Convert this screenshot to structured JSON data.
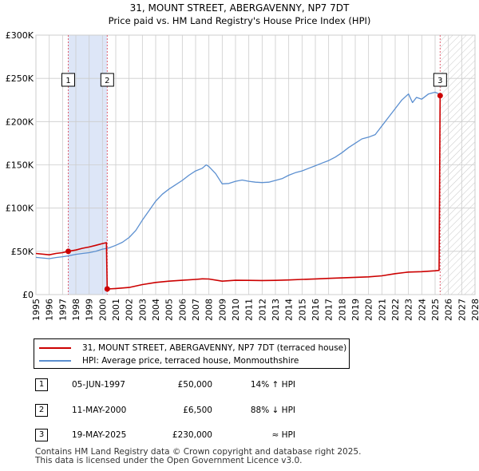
{
  "chart_data": {
    "type": "line",
    "title": "31, MOUNT STREET, ABERGAVENNY, NP7 7DT",
    "subtitle": "Price paid vs. HM Land Registry's House Price Index (HPI)",
    "xlim": [
      1995,
      2028
    ],
    "ylim": [
      0,
      300000
    ],
    "x_ticks": [
      "1995",
      "1996",
      "1997",
      "1998",
      "1999",
      "2000",
      "2001",
      "2002",
      "2003",
      "2004",
      "2005",
      "2006",
      "2007",
      "2008",
      "2009",
      "2010",
      "2011",
      "2012",
      "2013",
      "2014",
      "2015",
      "2016",
      "2017",
      "2018",
      "2019",
      "2020",
      "2021",
      "2022",
      "2023",
      "2024",
      "2025",
      "2026",
      "2027",
      "2028"
    ],
    "y_ticks": [
      {
        "value": 0,
        "label": "£0"
      },
      {
        "value": 50000,
        "label": "£50K"
      },
      {
        "value": 100000,
        "label": "£100K"
      },
      {
        "value": 150000,
        "label": "£150K"
      },
      {
        "value": 200000,
        "label": "£200K"
      },
      {
        "value": 250000,
        "label": "£250K"
      },
      {
        "value": 300000,
        "label": "£300K"
      }
    ],
    "colors": {
      "property": "#cc0000",
      "hpi": "#5b8fd0",
      "marker_line": "#e06070",
      "shade": "#dde6f7",
      "grid": "#cccccc"
    },
    "shaded_period": [
      1997.43,
      2000.36
    ],
    "future_start": 2025.38,
    "series": [
      {
        "name": "31, MOUNT STREET, ABERGAVENNY, NP7 7DT (terraced house)",
        "points": [
          [
            1995.0,
            47500
          ],
          [
            1996.0,
            46000
          ],
          [
            1996.5,
            47500
          ],
          [
            1997.0,
            48500
          ],
          [
            1997.43,
            50000
          ],
          [
            1998.0,
            51500
          ],
          [
            1998.5,
            53500
          ],
          [
            1999.0,
            55000
          ],
          [
            1999.5,
            57000
          ],
          [
            2000.0,
            59000
          ],
          [
            2000.3,
            60000
          ],
          [
            2000.36,
            6500
          ],
          [
            2001.0,
            7000
          ],
          [
            2002.0,
            8200
          ],
          [
            2003.0,
            11500
          ],
          [
            2004.0,
            14000
          ],
          [
            2005.0,
            15500
          ],
          [
            2006.0,
            16500
          ],
          [
            2007.0,
            17500
          ],
          [
            2007.5,
            18200
          ],
          [
            2008.0,
            18000
          ],
          [
            2009.0,
            15500
          ],
          [
            2010.0,
            16500
          ],
          [
            2011.0,
            16400
          ],
          [
            2012.0,
            16200
          ],
          [
            2013.0,
            16400
          ],
          [
            2014.0,
            16900
          ],
          [
            2015.0,
            17500
          ],
          [
            2016.0,
            18100
          ],
          [
            2017.0,
            18700
          ],
          [
            2018.0,
            19300
          ],
          [
            2019.0,
            19900
          ],
          [
            2020.0,
            20500
          ],
          [
            2021.0,
            21700
          ],
          [
            2022.0,
            24200
          ],
          [
            2023.0,
            26000
          ],
          [
            2024.0,
            26500
          ],
          [
            2025.0,
            27500
          ],
          [
            2025.3,
            28000
          ],
          [
            2025.38,
            230000
          ]
        ]
      },
      {
        "name": "HPI: Average price, terraced house, Monmouthshire",
        "points": [
          [
            1995.0,
            43000
          ],
          [
            1996.0,
            41500
          ],
          [
            1996.5,
            42800
          ],
          [
            1997.0,
            43800
          ],
          [
            1997.5,
            45000
          ],
          [
            1998.0,
            46500
          ],
          [
            1998.5,
            47500
          ],
          [
            1999.0,
            48500
          ],
          [
            1999.5,
            50000
          ],
          [
            2000.0,
            52500
          ],
          [
            2000.5,
            54000
          ],
          [
            2001.0,
            57000
          ],
          [
            2001.5,
            60500
          ],
          [
            2002.0,
            66000
          ],
          [
            2002.5,
            74000
          ],
          [
            2003.0,
            86000
          ],
          [
            2003.5,
            97000
          ],
          [
            2004.0,
            108000
          ],
          [
            2004.5,
            116000
          ],
          [
            2005.0,
            122000
          ],
          [
            2005.5,
            127000
          ],
          [
            2006.0,
            132000
          ],
          [
            2006.5,
            138000
          ],
          [
            2007.0,
            143000
          ],
          [
            2007.5,
            146000
          ],
          [
            2007.8,
            150000
          ],
          [
            2008.0,
            148000
          ],
          [
            2008.5,
            140000
          ],
          [
            2009.0,
            128000
          ],
          [
            2009.5,
            128500
          ],
          [
            2010.0,
            131000
          ],
          [
            2010.5,
            132500
          ],
          [
            2011.0,
            131000
          ],
          [
            2011.5,
            130000
          ],
          [
            2012.0,
            129500
          ],
          [
            2012.5,
            130000
          ],
          [
            2013.0,
            132000
          ],
          [
            2013.5,
            134000
          ],
          [
            2014.0,
            138000
          ],
          [
            2014.5,
            141000
          ],
          [
            2015.0,
            143000
          ],
          [
            2015.5,
            146000
          ],
          [
            2016.0,
            149000
          ],
          [
            2016.5,
            152000
          ],
          [
            2017.0,
            155000
          ],
          [
            2017.5,
            159000
          ],
          [
            2018.0,
            164000
          ],
          [
            2018.5,
            170000
          ],
          [
            2019.0,
            175000
          ],
          [
            2019.5,
            180000
          ],
          [
            2020.0,
            182000
          ],
          [
            2020.5,
            185000
          ],
          [
            2021.0,
            195000
          ],
          [
            2021.5,
            205000
          ],
          [
            2022.0,
            215000
          ],
          [
            2022.5,
            225000
          ],
          [
            2023.0,
            232000
          ],
          [
            2023.3,
            222000
          ],
          [
            2023.6,
            228000
          ],
          [
            2024.0,
            226000
          ],
          [
            2024.5,
            232000
          ],
          [
            2025.0,
            234000
          ],
          [
            2025.3,
            232000
          ]
        ]
      }
    ],
    "annotations": [
      {
        "id": "1",
        "x": 1997.43,
        "y": 50000
      },
      {
        "id": "2",
        "x": 2000.36,
        "y": 6500
      },
      {
        "id": "3",
        "x": 2025.38,
        "y": 230000
      }
    ]
  },
  "legend": {
    "property_label": "31, MOUNT STREET, ABERGAVENNY, NP7 7DT (terraced house)",
    "hpi_label": "HPI: Average price, terraced house, Monmouthshire"
  },
  "transactions": [
    {
      "num": "1",
      "date": "05-JUN-1997",
      "price": "£50,000",
      "hpi": "14% ↑ HPI"
    },
    {
      "num": "2",
      "date": "11-MAY-2000",
      "price": "£6,500",
      "hpi": "88% ↓ HPI"
    },
    {
      "num": "3",
      "date": "19-MAY-2025",
      "price": "£230,000",
      "hpi": "≈ HPI"
    }
  ],
  "footer": {
    "line1": "Contains HM Land Registry data © Crown copyright and database right 2025.",
    "line2": "This data is licensed under the Open Government Licence v3.0."
  }
}
